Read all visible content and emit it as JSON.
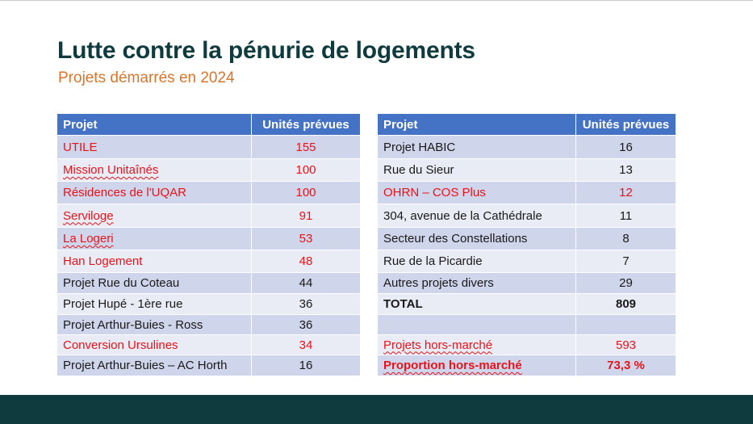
{
  "title": "Lutte contre la pénurie de logements",
  "subtitle": "Projets démarrés en 2024",
  "colors": {
    "title": "#0f3a3e",
    "subtitle": "#d8752b",
    "header": "#4472c4",
    "row_dark": "#cfd5ea",
    "row_light": "#e9ebf5",
    "highlight_red": "#e8141a",
    "footer": "#0f3a3e"
  },
  "left_table": {
    "headers": [
      "Projet",
      "Unités prévues"
    ],
    "rows": [
      {
        "project": "UTILE",
        "units": "155"
      },
      {
        "project": "Mission Unitaînés",
        "units": "100"
      },
      {
        "project": "Résidences de l'UQAR",
        "units": "100"
      },
      {
        "project": "Serviloge",
        "units": "91"
      },
      {
        "project": "La Logeri",
        "units": "53"
      },
      {
        "project": "Han Logement",
        "units": "48"
      },
      {
        "project": "Projet Rue du Coteau",
        "units": "44"
      },
      {
        "project": "Projet Hupé - 1ère rue",
        "units": "36"
      },
      {
        "project": "Projet Arthur-Buies - Ross",
        "units": "36"
      },
      {
        "project": "Conversion Ursulines",
        "units": "34"
      },
      {
        "project": "Projet Arthur-Buies – AC Horth",
        "units": "16"
      }
    ]
  },
  "right_table": {
    "headers": [
      "Projet",
      "Unités prévues"
    ],
    "rows": [
      {
        "project": "Projet HABIC",
        "units": "16"
      },
      {
        "project": "Rue du Sieur",
        "units": "13"
      },
      {
        "project": "OHRN – COS Plus",
        "units": "12"
      },
      {
        "project": "304, avenue de la Cathédrale",
        "units": "11"
      },
      {
        "project": "Secteur des Constellations",
        "units": "8"
      },
      {
        "project": "Rue de la Picardie",
        "units": "7"
      },
      {
        "project": "Autres projets divers",
        "units": "29"
      },
      {
        "project": "TOTAL",
        "units": "809"
      },
      {
        "project": "",
        "units": ""
      },
      {
        "project": "Projets hors-marché",
        "units": "593"
      },
      {
        "project": "Proportion hors-marché",
        "units": "73,3 %"
      }
    ]
  }
}
